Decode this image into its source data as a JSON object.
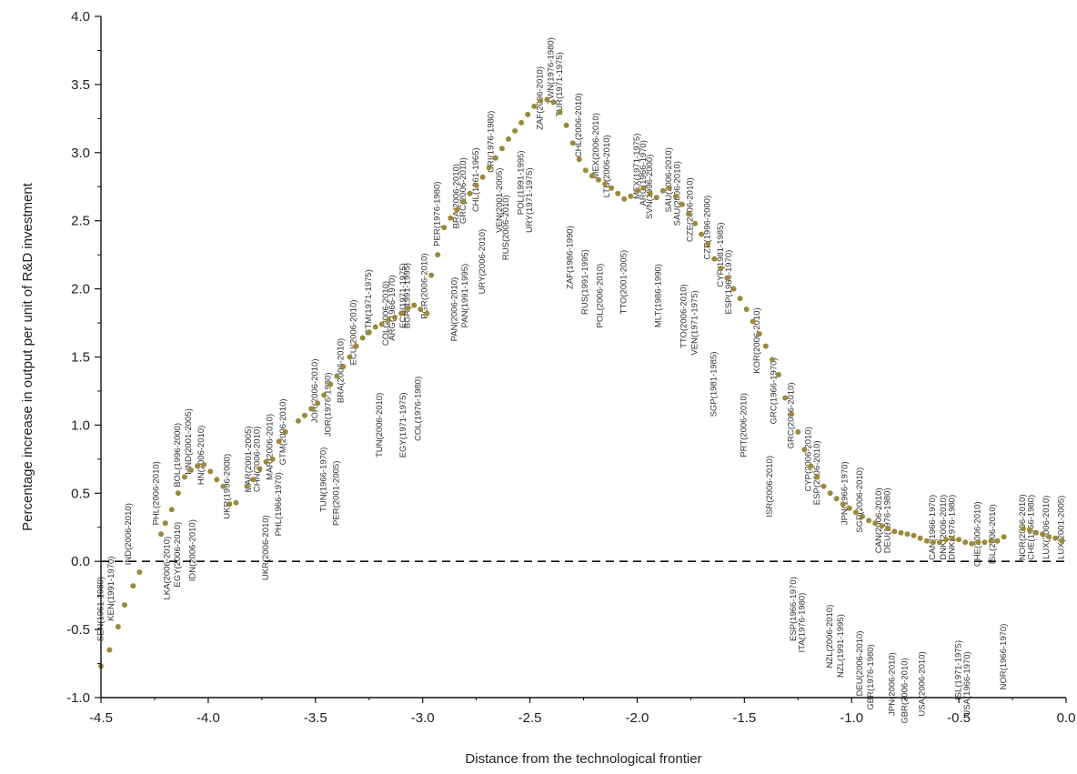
{
  "chart_data": {
    "type": "scatter",
    "title": "",
    "xlabel": "Distance from the technological frontier",
    "ylabel": "Percentage increase in output per unit of R&D investment",
    "xlim": [
      -4.5,
      0.0
    ],
    "ylim": [
      -1.0,
      4.0
    ],
    "x_ticks": [
      "-4.5",
      "-4.0",
      "-3.5",
      "-3.0",
      "-2.5",
      "-2.0",
      "-1.5",
      "-1.0",
      "-0.5",
      "0.0"
    ],
    "y_ticks": [
      "-1.0",
      "-0.5",
      "0.0",
      "0.5",
      "1.0",
      "1.5",
      "2.0",
      "2.5",
      "3.0",
      "3.5",
      "4.0"
    ],
    "reference_line": {
      "y": 0.0,
      "style": "dashed"
    },
    "marker_color": "#9a8a3c",
    "points": [
      [
        -4.5,
        -0.77
      ],
      [
        -4.46,
        -0.65
      ],
      [
        -4.42,
        -0.48
      ],
      [
        -4.39,
        -0.32
      ],
      [
        -4.35,
        -0.18
      ],
      [
        -4.32,
        -0.08
      ],
      [
        -4.22,
        0.2
      ],
      [
        -4.2,
        0.28
      ],
      [
        -4.17,
        0.38
      ],
      [
        -4.14,
        0.5
      ],
      [
        -4.11,
        0.62
      ],
      [
        -4.08,
        0.67
      ],
      [
        -4.05,
        0.7
      ],
      [
        -4.02,
        0.71
      ],
      [
        -3.99,
        0.66
      ],
      [
        -3.96,
        0.6
      ],
      [
        -3.93,
        0.55
      ],
      [
        -3.9,
        0.42
      ],
      [
        -3.87,
        0.43
      ],
      [
        -3.82,
        0.55
      ],
      [
        -3.79,
        0.6
      ],
      [
        -3.76,
        0.68
      ],
      [
        -3.73,
        0.73
      ],
      [
        -3.7,
        0.75
      ],
      [
        -3.67,
        0.88
      ],
      [
        -3.64,
        0.95
      ],
      [
        -3.58,
        1.03
      ],
      [
        -3.55,
        1.07
      ],
      [
        -3.52,
        1.12
      ],
      [
        -3.49,
        1.16
      ],
      [
        -3.46,
        1.22
      ],
      [
        -3.43,
        1.3
      ],
      [
        -3.4,
        1.36
      ],
      [
        -3.37,
        1.43
      ],
      [
        -3.34,
        1.5
      ],
      [
        -3.31,
        1.58
      ],
      [
        -3.28,
        1.64
      ],
      [
        -3.25,
        1.68
      ],
      [
        -3.22,
        1.72
      ],
      [
        -3.19,
        1.74
      ],
      [
        -3.16,
        1.77
      ],
      [
        -3.13,
        1.79
      ],
      [
        -3.1,
        1.82
      ],
      [
        -3.07,
        1.86
      ],
      [
        -3.04,
        1.88
      ],
      [
        -3.01,
        1.85
      ],
      [
        -2.98,
        1.82
      ],
      [
        -2.96,
        2.1
      ],
      [
        -2.93,
        2.25
      ],
      [
        -2.9,
        2.45
      ],
      [
        -2.87,
        2.52
      ],
      [
        -2.84,
        2.58
      ],
      [
        -2.81,
        2.64
      ],
      [
        -2.78,
        2.7
      ],
      [
        -2.75,
        2.76
      ],
      [
        -2.72,
        2.82
      ],
      [
        -2.69,
        2.89
      ],
      [
        -2.66,
        2.96
      ],
      [
        -2.63,
        3.03
      ],
      [
        -2.6,
        3.1
      ],
      [
        -2.57,
        3.16
      ],
      [
        -2.54,
        3.22
      ],
      [
        -2.51,
        3.28
      ],
      [
        -2.48,
        3.34
      ],
      [
        -2.45,
        3.38
      ],
      [
        -2.42,
        3.39
      ],
      [
        -2.39,
        3.37
      ],
      [
        -2.36,
        3.3
      ],
      [
        -2.33,
        3.2
      ],
      [
        -2.3,
        3.07
      ],
      [
        -2.27,
        2.95
      ],
      [
        -2.24,
        2.87
      ],
      [
        -2.21,
        2.83
      ],
      [
        -2.18,
        2.8
      ],
      [
        -2.15,
        2.77
      ],
      [
        -2.12,
        2.74
      ],
      [
        -2.09,
        2.7
      ],
      [
        -2.06,
        2.66
      ],
      [
        -2.03,
        2.68
      ],
      [
        -2.0,
        2.72
      ],
      [
        -1.97,
        2.74
      ],
      [
        -1.94,
        2.7
      ],
      [
        -1.91,
        2.67
      ],
      [
        -1.88,
        2.72
      ],
      [
        -1.85,
        2.74
      ],
      [
        -1.82,
        2.68
      ],
      [
        -1.79,
        2.62
      ],
      [
        -1.76,
        2.55
      ],
      [
        -1.73,
        2.48
      ],
      [
        -1.7,
        2.4
      ],
      [
        -1.67,
        2.33
      ],
      [
        -1.64,
        2.22
      ],
      [
        -1.61,
        2.15
      ],
      [
        -1.58,
        2.08
      ],
      [
        -1.55,
        2.0
      ],
      [
        -1.52,
        1.93
      ],
      [
        -1.49,
        1.85
      ],
      [
        -1.46,
        1.76
      ],
      [
        -1.43,
        1.67
      ],
      [
        -1.4,
        1.58
      ],
      [
        -1.37,
        1.48
      ],
      [
        -1.34,
        1.37
      ],
      [
        -1.31,
        1.2
      ],
      [
        -1.28,
        1.08
      ],
      [
        -1.25,
        0.95
      ],
      [
        -1.22,
        0.82
      ],
      [
        -1.19,
        0.7
      ],
      [
        -1.16,
        0.62
      ],
      [
        -1.13,
        0.55
      ],
      [
        -1.1,
        0.5
      ],
      [
        -1.07,
        0.46
      ],
      [
        -1.04,
        0.42
      ],
      [
        -1.01,
        0.39
      ],
      [
        -0.98,
        0.36
      ],
      [
        -0.95,
        0.33
      ],
      [
        -0.92,
        0.3
      ],
      [
        -0.89,
        0.28
      ],
      [
        -0.86,
        0.26
      ],
      [
        -0.83,
        0.24
      ],
      [
        -0.8,
        0.22
      ],
      [
        -0.77,
        0.21
      ],
      [
        -0.74,
        0.2
      ],
      [
        -0.71,
        0.19
      ],
      [
        -0.68,
        0.17
      ],
      [
        -0.65,
        0.15
      ],
      [
        -0.62,
        0.14
      ],
      [
        -0.59,
        0.14
      ],
      [
        -0.56,
        0.16
      ],
      [
        -0.53,
        0.17
      ],
      [
        -0.5,
        0.16
      ],
      [
        -0.47,
        0.14
      ],
      [
        -0.44,
        0.13
      ],
      [
        -0.41,
        0.14
      ],
      [
        -0.38,
        0.14
      ],
      [
        -0.35,
        0.15
      ],
      [
        -0.32,
        0.15
      ],
      [
        -0.29,
        0.18
      ],
      [
        -0.2,
        0.24
      ],
      [
        -0.17,
        0.23
      ],
      [
        -0.14,
        0.21
      ],
      [
        -0.11,
        0.2
      ],
      [
        -0.08,
        0.18
      ],
      [
        -0.05,
        0.17
      ],
      [
        -0.02,
        0.15
      ]
    ],
    "annotations": [
      {
        "text": "SEN(1961-1980)",
        "x": -4.49,
        "y": -0.35
      },
      {
        "text": "KEN(1991-1970)",
        "x": -4.44,
        "y": -0.2
      },
      {
        "text": "IND(2006-2010)",
        "x": -4.36,
        "y": 0.2
      },
      {
        "text": "PHL(2006-2010)",
        "x": -4.23,
        "y": 0.5
      },
      {
        "text": "LKA(2006-2010)",
        "x": -4.18,
        "y": -0.05
      },
      {
        "text": "EGY(2006-2010)",
        "x": -4.13,
        "y": 0.05
      },
      {
        "text": "BOL(1996-2000)",
        "x": -4.13,
        "y": 0.78
      },
      {
        "text": "HND(2001-2005)",
        "x": -4.08,
        "y": 0.88
      },
      {
        "text": "IDN(2006-2010)",
        "x": -4.06,
        "y": 0.08
      },
      {
        "text": "HN(2006-2010)",
        "x": -4.02,
        "y": 0.78
      },
      {
        "text": "UKR(1996-2000)",
        "x": -3.9,
        "y": 0.55
      },
      {
        "text": "MAR(2001-2005)",
        "x": -3.8,
        "y": 0.75
      },
      {
        "text": "CHN(2006-2010)",
        "x": -3.76,
        "y": 0.75
      },
      {
        "text": "UKR(2006-2010)",
        "x": -3.72,
        "y": 0.1
      },
      {
        "text": "MAR(2006-2010)",
        "x": -3.7,
        "y": 0.84
      },
      {
        "text": "GTM(2006-2010)",
        "x": -3.64,
        "y": 0.95
      },
      {
        "text": "PHL(1966-1970)",
        "x": -3.66,
        "y": 0.42
      },
      {
        "text": "TUN(1966-1970)",
        "x": -3.45,
        "y": 0.6
      },
      {
        "text": "JOR(2006-2010)",
        "x": -3.49,
        "y": 1.25
      },
      {
        "text": "JOR(1976-1980)",
        "x": -3.43,
        "y": 1.15
      },
      {
        "text": "PER(2001-2005)",
        "x": -3.39,
        "y": 0.5
      },
      {
        "text": "BRA(2006-2010)",
        "x": -3.37,
        "y": 1.4
      },
      {
        "text": "ECU(2006-2010)",
        "x": -3.31,
        "y": 1.68
      },
      {
        "text": "GTM(1971-1975)",
        "x": -3.24,
        "y": 1.9
      },
      {
        "text": "TUN(2006-2010)",
        "x": -3.19,
        "y": 1.0
      },
      {
        "text": "COL(2006-2010)",
        "x": -3.16,
        "y": 1.82
      },
      {
        "text": "ARG(1966-1970)",
        "x": -3.13,
        "y": 1.86
      },
      {
        "text": "EGY(1971-1975)",
        "x": -3.08,
        "y": 1.0
      },
      {
        "text": "ECU(1971-1975)",
        "x": -3.08,
        "y": 1.95
      },
      {
        "text": "BGR(1991-1995)",
        "x": -3.06,
        "y": 1.95
      },
      {
        "text": "COL(1976-1980)",
        "x": -3.01,
        "y": 1.12
      },
      {
        "text": "BGR(2006-2010)",
        "x": -2.98,
        "y": 2.02
      },
      {
        "text": "PER(1976-1980)",
        "x": -2.92,
        "y": 2.55
      },
      {
        "text": "PAN(2006-2010)",
        "x": -2.84,
        "y": 1.85
      },
      {
        "text": "BRA(2006-2010)",
        "x": -2.83,
        "y": 2.68
      },
      {
        "text": "GRC(2006-2010)",
        "x": -2.8,
        "y": 2.72
      },
      {
        "text": "PAN(1991-1995)",
        "x": -2.79,
        "y": 1.95
      },
      {
        "text": "CHL(1961-1965)",
        "x": -2.74,
        "y": 2.8
      },
      {
        "text": "URY(2006-2010)",
        "x": -2.71,
        "y": 2.2
      },
      {
        "text": "CRI(1976-1980)",
        "x": -2.67,
        "y": 3.08
      },
      {
        "text": "VEN(2001-2005)",
        "x": -2.63,
        "y": 2.65
      },
      {
        "text": "RUS(2006-2010)",
        "x": -2.6,
        "y": 2.45
      },
      {
        "text": "POL(1991-1995)",
        "x": -2.53,
        "y": 2.78
      },
      {
        "text": "URY(1971-1975)",
        "x": -2.49,
        "y": 2.65
      },
      {
        "text": "ZAF(2006-2010)",
        "x": -2.44,
        "y": 3.4
      },
      {
        "text": "TWN(1976-1980)",
        "x": -2.39,
        "y": 3.6
      },
      {
        "text": "TUR(1971-1975)",
        "x": -2.35,
        "y": 3.5
      },
      {
        "text": "ZAF(1986-1990)",
        "x": -2.3,
        "y": 2.23
      },
      {
        "text": "CHL(2006-2010)",
        "x": -2.26,
        "y": 3.2
      },
      {
        "text": "RUS(1991-1995)",
        "x": -2.23,
        "y": 2.05
      },
      {
        "text": "MEX(2006-2010)",
        "x": -2.18,
        "y": 3.05
      },
      {
        "text": "POL(2006-2010)",
        "x": -2.16,
        "y": 1.95
      },
      {
        "text": "LTU(2006-2010)",
        "x": -2.13,
        "y": 2.9
      },
      {
        "text": "TTO(2001-2005)",
        "x": -2.05,
        "y": 2.05
      },
      {
        "text": "MEX(1971-1975)",
        "x": -1.99,
        "y": 2.9
      },
      {
        "text": "ARG(1966-1970)",
        "x": -1.96,
        "y": 2.85
      },
      {
        "text": "SVN(1996-2000)",
        "x": -1.93,
        "y": 2.75
      },
      {
        "text": "MLT(1986-1990)",
        "x": -1.89,
        "y": 1.95
      },
      {
        "text": "SAU(2006-2010)",
        "x": -1.84,
        "y": 2.8
      },
      {
        "text": "SAU(2006-2010)",
        "x": -1.8,
        "y": 2.7
      },
      {
        "text": "TTO(2006-2010)",
        "x": -1.77,
        "y": 1.8
      },
      {
        "text": "CZE(2006-2010)",
        "x": -1.74,
        "y": 2.58
      },
      {
        "text": "VEN(1971-1975)",
        "x": -1.72,
        "y": 1.75
      },
      {
        "text": "CZE(1996-2000)",
        "x": -1.66,
        "y": 2.45
      },
      {
        "text": "SGP(1981-1985)",
        "x": -1.63,
        "y": 1.3
      },
      {
        "text": "CYP(1981-1985)",
        "x": -1.6,
        "y": 2.25
      },
      {
        "text": "ESP(1966-1970)",
        "x": -1.56,
        "y": 2.05
      },
      {
        "text": "PRT(2006-2010)",
        "x": -1.49,
        "y": 1.0
      },
      {
        "text": "KOR(2006-2010)",
        "x": -1.43,
        "y": 1.62
      },
      {
        "text": "ISR(2006-2010)",
        "x": -1.37,
        "y": 0.55
      },
      {
        "text": "GRC(1966-1970)",
        "x": -1.35,
        "y": 1.25
      },
      {
        "text": "GRC(2006-2010)",
        "x": -1.27,
        "y": 1.07
      },
      {
        "text": "ESP(1966-1970)",
        "x": -1.26,
        "y": -0.35
      },
      {
        "text": "CYP(2006-2010)",
        "x": -1.19,
        "y": 0.75
      },
      {
        "text": "ITA(1976-1980)",
        "x": -1.22,
        "y": -0.45
      },
      {
        "text": "ESP(2006-2010)",
        "x": -1.15,
        "y": 0.65
      },
      {
        "text": "NZL(2006-2010)",
        "x": -1.09,
        "y": -0.55
      },
      {
        "text": "NZL(1991-1995)",
        "x": -1.04,
        "y": -0.62
      },
      {
        "text": "JPN(1966-1970)",
        "x": -1.02,
        "y": 0.5
      },
      {
        "text": "SGP(2006-2010)",
        "x": -0.95,
        "y": 0.45
      },
      {
        "text": "DEU(2006-2010)",
        "x": -0.95,
        "y": -0.75
      },
      {
        "text": "GBR(1976-1980)",
        "x": -0.9,
        "y": -0.85
      },
      {
        "text": "CAN(2006-2010)",
        "x": -0.86,
        "y": 0.3
      },
      {
        "text": "DEU(1976-1980)",
        "x": -0.82,
        "y": 0.3
      },
      {
        "text": "JPN(2006-2010)",
        "x": -0.8,
        "y": -0.9
      },
      {
        "text": "GBR(2006-2010)",
        "x": -0.74,
        "y": -0.95
      },
      {
        "text": "USA(2006-2010)",
        "x": -0.66,
        "y": -0.9
      },
      {
        "text": "CAN(1966-1970)",
        "x": -0.61,
        "y": 0.25
      },
      {
        "text": "DNK(2006-2010)",
        "x": -0.56,
        "y": 0.25
      },
      {
        "text": "DNK(1976-1980)",
        "x": -0.52,
        "y": 0.25
      },
      {
        "text": "ISL(1971-1975)",
        "x": -0.49,
        "y": -0.8
      },
      {
        "text": "USA(1966-1970)",
        "x": -0.45,
        "y": -0.9
      },
      {
        "text": "CHE(2006-2010)",
        "x": -0.4,
        "y": 0.2
      },
      {
        "text": "ISL(2006-2010)",
        "x": -0.33,
        "y": 0.2
      },
      {
        "text": "NOR(1966-1970)",
        "x": -0.28,
        "y": -0.7
      },
      {
        "text": "NOR(2006-2010)",
        "x": -0.19,
        "y": 0.25
      },
      {
        "text": "CHE(1966-1980)",
        "x": -0.15,
        "y": 0.25
      },
      {
        "text": "LUX(2006-2010)",
        "x": -0.08,
        "y": 0.25
      },
      {
        "text": "LUX(2001-2005)",
        "x": -0.01,
        "y": 0.25
      }
    ]
  }
}
